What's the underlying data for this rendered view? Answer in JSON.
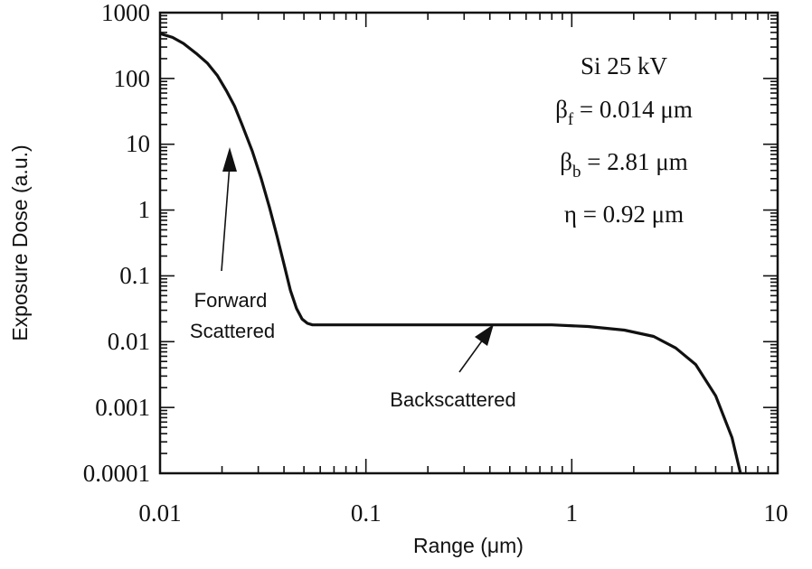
{
  "chart_data": {
    "type": "line",
    "xscale": "log",
    "yscale": "log",
    "xlabel": "Range (μm)",
    "ylabel": "Exposure Dose (a.u.)",
    "xlim": [
      0.01,
      10
    ],
    "ylim": [
      0.0001,
      1000
    ],
    "x_ticks": [
      {
        "value": 0.01,
        "label": "0.01"
      },
      {
        "value": 0.1,
        "label": "0.1"
      },
      {
        "value": 1,
        "label": "1"
      },
      {
        "value": 10,
        "label": "10"
      }
    ],
    "y_ticks": [
      {
        "value": 1000,
        "label": "1000"
      },
      {
        "value": 100,
        "label": "100"
      },
      {
        "value": 10,
        "label": "10"
      },
      {
        "value": 1,
        "label": "1"
      },
      {
        "value": 0.1,
        "label": "0.1"
      },
      {
        "value": 0.01,
        "label": "0.01"
      },
      {
        "value": 0.001,
        "label": "0.001"
      },
      {
        "value": 0.0001,
        "label": "0.0001"
      }
    ],
    "grid": false,
    "series": [
      {
        "x": [
          0.01,
          0.0115,
          0.013,
          0.015,
          0.017,
          0.019,
          0.021,
          0.023,
          0.025,
          0.028,
          0.031,
          0.034,
          0.037,
          0.04,
          0.043,
          0.046,
          0.049,
          0.052,
          0.055,
          0.06,
          0.1,
          0.2,
          0.4,
          0.8,
          1.2,
          1.8,
          2.5,
          3.2,
          4,
          5,
          6,
          6.6
        ],
        "y": [
          480,
          420,
          340,
          240,
          170,
          110,
          65,
          38,
          20,
          8,
          3,
          1.1,
          0.4,
          0.15,
          0.06,
          0.032,
          0.022,
          0.019,
          0.018,
          0.018,
          0.018,
          0.018,
          0.018,
          0.018,
          0.017,
          0.015,
          0.012,
          0.008,
          0.0045,
          0.0015,
          0.00035,
          0.0001
        ]
      }
    ],
    "annotations": {
      "forward_line1": "Forward",
      "forward_line2": "Scattered",
      "backscattered": "Backscattered",
      "title_line": "Si 25 kV",
      "beta_f_symbol": "β",
      "beta_f_sub": "f",
      "beta_f_value": " = 0.014 μm",
      "beta_b_symbol": "β",
      "beta_b_sub": "b",
      "beta_b_value": " = 2.81 μm",
      "eta_line": "η = 0.92 μm"
    },
    "colors": {
      "line": "#111111",
      "axes": "#111111"
    }
  }
}
